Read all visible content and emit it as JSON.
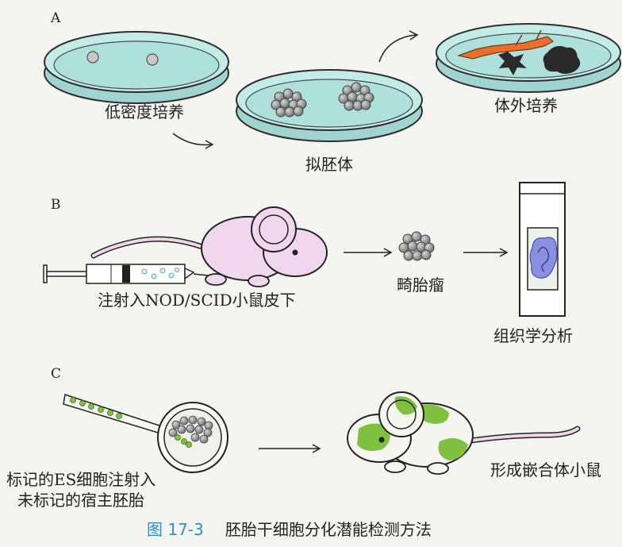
{
  "panels": {
    "a": {
      "letter": "A",
      "low_density": "低密度培养",
      "embryoid": "拟胚体",
      "in_vitro": "体外培养"
    },
    "b": {
      "letter": "B",
      "inject": "注射入NOD/SCID小鼠皮下",
      "teratoma": "畸胎瘤",
      "histology": "组织学分析"
    },
    "c": {
      "letter": "C",
      "label_line1": "标记的ES细胞注射入",
      "label_line2": "未标记的宿主胚胎",
      "chimera": "形成嵌合体小鼠"
    }
  },
  "caption": {
    "number": "图 17-3",
    "text": "胚胎干细胞分化潜能检测方法"
  },
  "colors": {
    "dish": "#aee0dc",
    "dish_edge": "#2e2e2e",
    "mouse": "#f1d7ee",
    "chimera_green": "#7fc13e",
    "cell_gray": "#8d8d8d",
    "neuron_orange": "#e8702c",
    "tissue_blue": "#8a8fe0",
    "caption_blue": "#2a8fcf"
  }
}
